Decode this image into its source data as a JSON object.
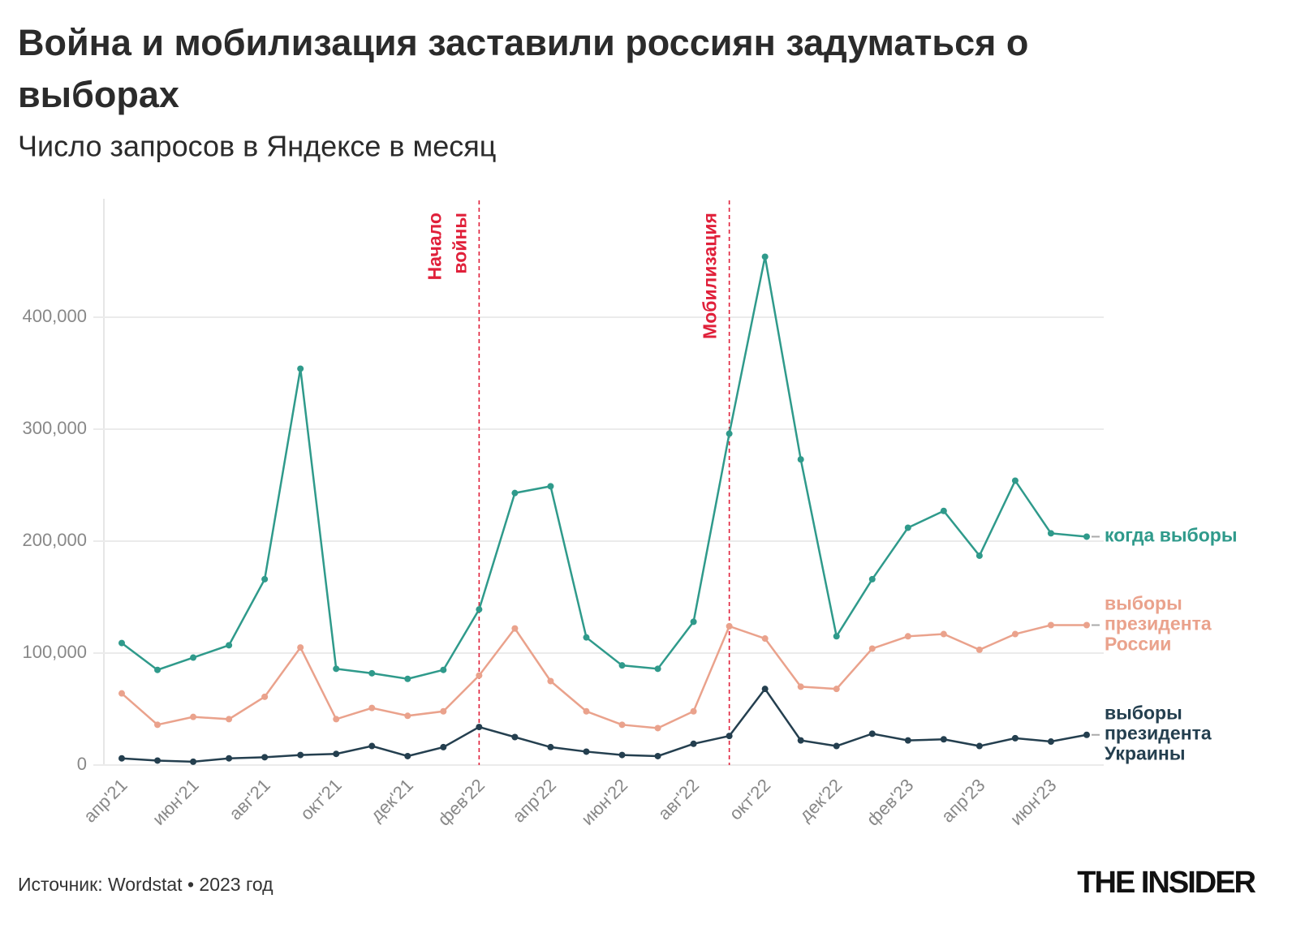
{
  "chart_data": {
    "type": "line",
    "title": "Война и мобилизация заставили россиян задуматься о выборах",
    "subtitle": "Число запросов в Яндексе в месяц",
    "categories": [
      "апр'21",
      null,
      "июн'21",
      null,
      "авг'21",
      null,
      "окт'21",
      null,
      "дек'21",
      null,
      "фев'22",
      null,
      "апр'22",
      null,
      "июн'22",
      null,
      "авг'22",
      null,
      "окт'22",
      null,
      "дек'22",
      null,
      "фев'23",
      null,
      "апр'23",
      null,
      "июн'23",
      null
    ],
    "series": [
      {
        "name": "когда выборы",
        "color": "#2f9a8b",
        "values": [
          109000,
          85000,
          96000,
          107000,
          166000,
          354000,
          86000,
          82000,
          77000,
          85000,
          139000,
          243000,
          249000,
          114000,
          89000,
          86000,
          128000,
          296000,
          454000,
          273000,
          115000,
          166000,
          212000,
          227000,
          187000,
          254000,
          207000,
          204000
        ]
      },
      {
        "name": "выборы президента России",
        "color": "#eaa28c",
        "values": [
          64000,
          36000,
          43000,
          41000,
          61000,
          105000,
          41000,
          51000,
          44000,
          48000,
          80000,
          122000,
          75000,
          48000,
          36000,
          33000,
          48000,
          124000,
          113000,
          70000,
          68000,
          104000,
          115000,
          117000,
          103000,
          117000,
          125000,
          125000
        ]
      },
      {
        "name": "выборы президента Украины",
        "color": "#243f4f",
        "values": [
          6000,
          4000,
          3000,
          6000,
          7000,
          9000,
          10000,
          17000,
          8000,
          16000,
          34000,
          25000,
          16000,
          12000,
          9000,
          8000,
          19000,
          26000,
          68000,
          22000,
          17000,
          28000,
          22000,
          23000,
          17000,
          24000,
          21000,
          27000
        ]
      }
    ],
    "ylim": [
      0,
      500000
    ],
    "yticks": [
      0,
      {
        "value": 100000,
        "label": "100,000"
      },
      {
        "value": 200000,
        "label": "200,000"
      },
      {
        "value": 300000,
        "label": "300,000"
      },
      {
        "value": 400000,
        "label": "400,000"
      }
    ],
    "grid": true,
    "annotations": [
      {
        "at": 10,
        "lines": [
          "Начало",
          "войны"
        ],
        "color": "#e0203a"
      },
      {
        "at": 17,
        "lines": [
          "Мобилизация"
        ],
        "color": "#e0203a"
      }
    ],
    "source": "Источник: Wordstat • 2023 год",
    "logo": "THE INSIDER"
  }
}
